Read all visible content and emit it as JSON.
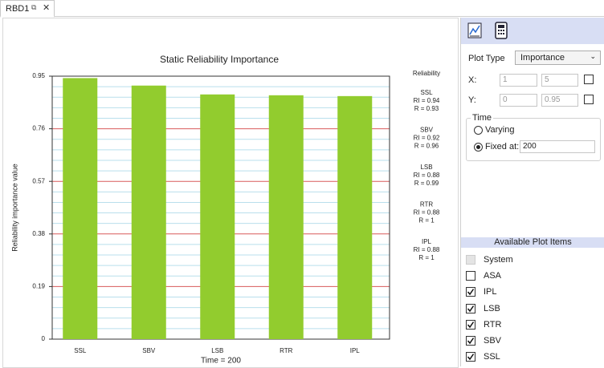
{
  "tab": {
    "title": "RBD1"
  },
  "chart_data": {
    "type": "bar",
    "title": "Static Reliability Importance",
    "x_label": "Time = 200",
    "y_label": "Reliability importance value",
    "categories": [
      "SSL",
      "SBV",
      "LSB",
      "RTR",
      "IPL"
    ],
    "values": [
      0.943,
      0.916,
      0.884,
      0.881,
      0.878
    ],
    "value_labels": [
      "RI = 0.94",
      "RI = 0.92",
      "RI = 0.88",
      "RI = 0.88",
      "RI = 0.88"
    ],
    "legend_title": "Reliability",
    "reliability_labels": [
      "R = 0.93",
      "R = 0.96",
      "R = 0.99",
      "R = 1",
      "R = 1"
    ],
    "color": "#92cc2e",
    "ylim": [
      0,
      0.95
    ],
    "yticks": [
      0,
      0.19,
      0.38,
      0.57,
      0.76,
      0.95
    ],
    "grid": true,
    "grid_color": "#d85a5a",
    "minor_grid_color": "#b9dfec"
  },
  "panel": {
    "plot_type_label": "Plot Type",
    "plot_type": "Importance",
    "x_label": "X:",
    "x_range": [
      1,
      5
    ],
    "y_label": "Y:",
    "y_range": [
      0,
      0.95
    ],
    "time": {
      "title": "Time",
      "options": [
        {
          "label": "Varying",
          "selected": false
        },
        {
          "label": "Fixed at:",
          "selected": true
        }
      ],
      "fixed_value": 200
    },
    "plot_items": {
      "title": "Available Plot Items",
      "items": [
        {
          "label": "System",
          "checked": false,
          "enabled": false
        },
        {
          "label": "ASA",
          "checked": false,
          "enabled": true
        },
        {
          "label": "IPL",
          "checked": true,
          "enabled": true
        },
        {
          "label": "LSB",
          "checked": true,
          "enabled": true
        },
        {
          "label": "RTR",
          "checked": true,
          "enabled": true
        },
        {
          "label": "SBV",
          "checked": true,
          "enabled": true
        },
        {
          "label": "SSL",
          "checked": true,
          "enabled": true
        }
      ]
    }
  }
}
